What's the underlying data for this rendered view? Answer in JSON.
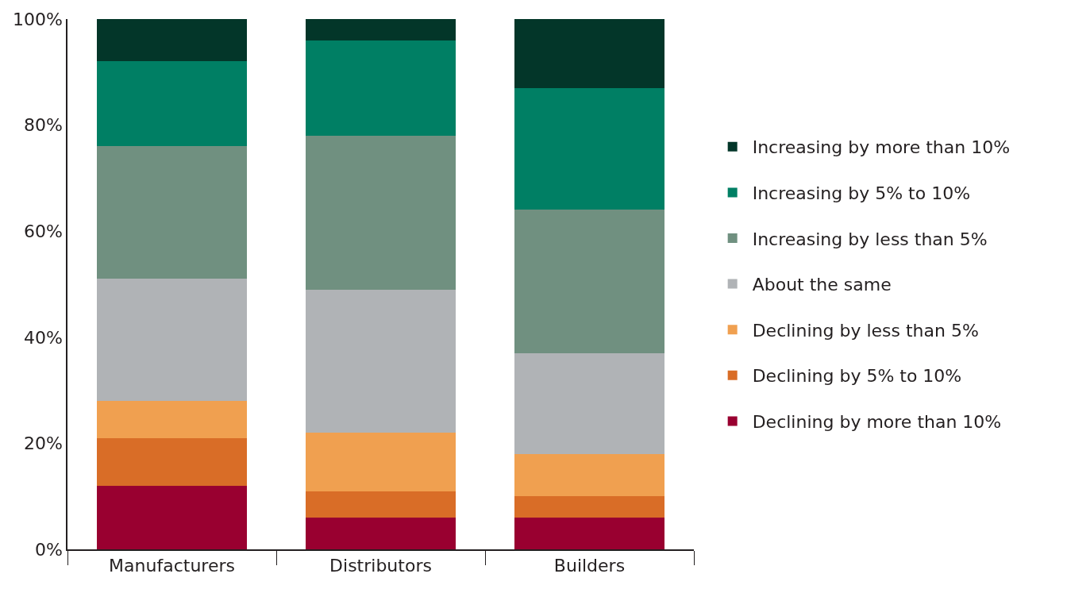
{
  "chart_data": {
    "type": "bar",
    "stacked": true,
    "categories": [
      "Manufacturers",
      "Distributors",
      "Builders"
    ],
    "series": [
      {
        "name": "Declining by more than 10%",
        "color": "#990030",
        "values": [
          12,
          6,
          6
        ]
      },
      {
        "name": "Declining by 5% to 10%",
        "color": "#d96d27",
        "values": [
          9,
          5,
          4
        ]
      },
      {
        "name": "Declining by less than 5%",
        "color": "#f0a050",
        "values": [
          7,
          11,
          8
        ]
      },
      {
        "name": "About the same",
        "color": "#b0b3b6",
        "values": [
          23,
          27,
          19
        ]
      },
      {
        "name": "Increasing by less than 5%",
        "color": "#709080",
        "values": [
          25,
          29,
          27
        ]
      },
      {
        "name": "Increasing by 5% to 10%",
        "color": "#007f64",
        "values": [
          16,
          18,
          23
        ]
      },
      {
        "name": "Increasing by more than 10%",
        "color": "#033629",
        "values": [
          8,
          4,
          13
        ]
      }
    ],
    "ylim": [
      0,
      100
    ],
    "yticks": [
      {
        "value": 0,
        "label": "0%"
      },
      {
        "value": 20,
        "label": "20%"
      },
      {
        "value": 40,
        "label": "40%"
      },
      {
        "value": 60,
        "label": "60%"
      },
      {
        "value": 80,
        "label": "80%"
      },
      {
        "value": 100,
        "label": "100%"
      }
    ],
    "legend": "right"
  }
}
